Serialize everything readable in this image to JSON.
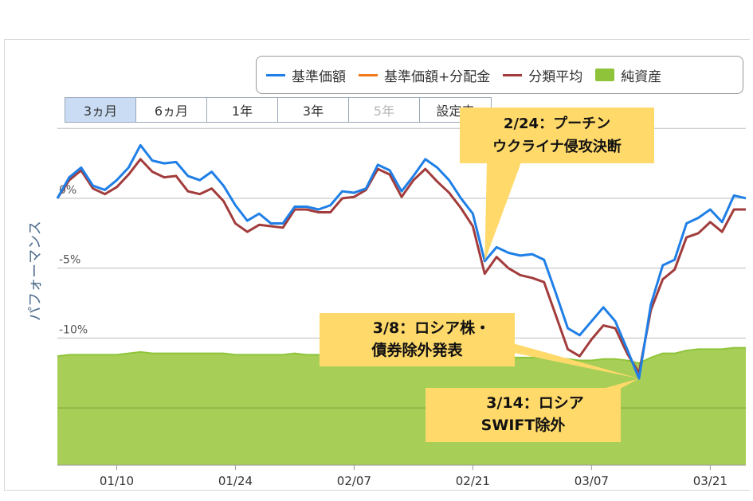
{
  "chart_data": {
    "type": "line",
    "ylabel": "パフォーマンス",
    "ytick_labels": [
      "0%",
      "-5%",
      "-10%"
    ],
    "yticks": [
      0,
      -5,
      -10
    ],
    "ylim": [
      -19.1,
      5.3
    ],
    "x_tick_labels": [
      "01/10",
      "01/24",
      "02/07",
      "02/21",
      "03/07",
      "03/21"
    ],
    "x_tick_index": [
      5,
      15,
      25,
      35,
      45,
      55
    ],
    "legend_position": "top-right",
    "legend": [
      {
        "name": "基準価額",
        "color": "#1f7fe6",
        "kind": "line"
      },
      {
        "name": "基準価額+分配金",
        "color": "#f07a1a",
        "kind": "line"
      },
      {
        "name": "分類平均",
        "color": "#a23c3c",
        "kind": "line"
      },
      {
        "name": "純資産",
        "color": "#8fc43a",
        "kind": "area"
      }
    ],
    "range_tabs": [
      {
        "label": "3ヵ月",
        "active": true,
        "disabled": false
      },
      {
        "label": "6ヵ月",
        "active": false,
        "disabled": false
      },
      {
        "label": "1年",
        "active": false,
        "disabled": false
      },
      {
        "label": "3年",
        "active": false,
        "disabled": false
      },
      {
        "label": "5年",
        "active": false,
        "disabled": true
      },
      {
        "label": "設定来",
        "active": false,
        "disabled": false
      }
    ],
    "series": [
      {
        "name": "基準価額",
        "values": [
          0.0,
          1.5,
          2.2,
          0.9,
          0.6,
          1.3,
          2.2,
          3.8,
          2.7,
          2.5,
          2.6,
          1.6,
          1.3,
          1.9,
          0.9,
          -0.5,
          -1.6,
          -1.1,
          -1.8,
          -1.8,
          -0.6,
          -0.6,
          -0.8,
          -0.5,
          0.5,
          0.4,
          0.7,
          2.4,
          2.0,
          0.5,
          1.6,
          2.8,
          2.2,
          1.3,
          0.0,
          -1.1,
          -4.5,
          -3.5,
          -3.9,
          -4.1,
          -4.0,
          -4.4,
          -6.8,
          -9.3,
          -9.8,
          -8.8,
          -7.8,
          -8.8,
          -10.8,
          -12.9,
          -7.6,
          -4.8,
          -4.4,
          -1.8,
          -1.4,
          -0.8,
          -1.7,
          0.2,
          0.0
        ]
      },
      {
        "name": "分類平均",
        "values": [
          0.0,
          1.3,
          2.0,
          0.7,
          0.3,
          0.8,
          1.7,
          2.8,
          1.9,
          1.5,
          1.6,
          0.5,
          0.3,
          0.7,
          -0.2,
          -1.8,
          -2.4,
          -1.9,
          -2.0,
          -2.1,
          -0.8,
          -0.8,
          -1.0,
          -1.0,
          0.0,
          0.1,
          0.6,
          2.1,
          1.7,
          0.1,
          1.3,
          2.1,
          1.2,
          0.4,
          -0.7,
          -2.0,
          -5.4,
          -4.2,
          -5.0,
          -5.5,
          -5.7,
          -6.0,
          -8.4,
          -10.8,
          -11.3,
          -10.1,
          -9.1,
          -9.3,
          -11.1,
          -12.5,
          -8.0,
          -5.8,
          -5.1,
          -2.8,
          -2.5,
          -1.7,
          -2.4,
          -0.8,
          -0.8
        ]
      },
      {
        "name": "純資産",
        "values": [
          -11.3,
          -11.2,
          -11.2,
          -11.2,
          -11.2,
          -11.2,
          -11.1,
          -11.0,
          -11.1,
          -11.1,
          -11.1,
          -11.1,
          -11.1,
          -11.1,
          -11.1,
          -11.2,
          -11.2,
          -11.2,
          -11.2,
          -11.2,
          -11.1,
          -11.2,
          -11.2,
          -11.2,
          -11.2,
          -11.2,
          -11.2,
          -11.3,
          -11.3,
          -11.3,
          -11.3,
          -11.3,
          -11.3,
          -11.3,
          -11.3,
          -11.3,
          -11.4,
          -11.4,
          -11.4,
          -11.4,
          -11.4,
          -11.4,
          -11.4,
          -11.5,
          -11.6,
          -11.6,
          -11.5,
          -11.5,
          -11.6,
          -11.8,
          -11.4,
          -11.1,
          -11.1,
          -10.9,
          -10.8,
          -10.8,
          -10.8,
          -10.7,
          -10.7
        ]
      }
    ],
    "annotations": [
      {
        "lines": [
          "2/24：プーチン",
          "ウクライナ侵攻決断"
        ],
        "target_index": 36,
        "target_series": "基準価額"
      },
      {
        "lines": [
          "3/8：ロシア株・",
          "債券除外発表"
        ],
        "target_index": 49,
        "target_series": "基準価額"
      },
      {
        "lines": [
          "3/14：ロシア",
          "SWIFT除外"
        ],
        "target_index": 49,
        "target_series": "基準価額"
      }
    ]
  }
}
